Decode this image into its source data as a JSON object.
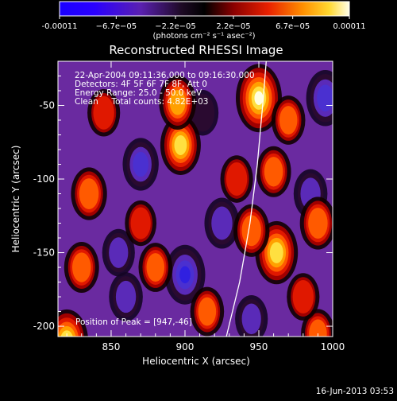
{
  "chart_data": {
    "type": "heatmap",
    "title": "Reconstructed RHESSI Image",
    "xlabel": "Heliocentric X (arcsec)",
    "ylabel": "Heliocentric Y (arcsec)",
    "xlim": [
      814,
      1000
    ],
    "ylim": [
      -207,
      -20
    ],
    "x_ticks": [
      850,
      900,
      950,
      1000
    ],
    "y_ticks": [
      -50,
      -100,
      -150,
      -200
    ],
    "colorbar": {
      "min": -0.00011,
      "max": 0.00011,
      "tick_values": [
        -0.00011,
        -6.7e-05,
        -2.2e-05,
        2.2e-05,
        6.7e-05,
        0.00011
      ],
      "tick_labels": [
        "-0.00011",
        "−6.7e−05",
        "−2.2e−05",
        "2.2e−05",
        "6.7e−05",
        "0.00011"
      ],
      "units_label": "(photons cm⁻² s⁻¹ asec⁻²)"
    },
    "annotations": [
      "22-Apr-2004 09:11:36.000 to 09:16:30.000",
      "Detectors: 4F 5F 6F 7F 8F, Att 0",
      "Energy Range: 25.0 - 50.0 keV",
      "Clean     Total counts: 4.82E+03"
    ],
    "peak_label": "Position of Peak = [947,-46]",
    "peak": [
      947,
      -46
    ],
    "limb_curve": [
      [
        928,
        -207
      ],
      [
        937,
        -170
      ],
      [
        944,
        -130
      ],
      [
        949,
        -90
      ],
      [
        953,
        -45
      ],
      [
        955,
        -20
      ]
    ],
    "bright_sources": [
      {
        "x": 950,
        "y": -45,
        "level": 1.0
      },
      {
        "x": 962,
        "y": -150,
        "level": 0.85
      },
      {
        "x": 897,
        "y": -77,
        "level": 0.75
      },
      {
        "x": 820,
        "y": -210,
        "level": 0.85
      },
      {
        "x": 895,
        "y": -48,
        "level": 0.6
      },
      {
        "x": 835,
        "y": -110,
        "level": 0.55
      },
      {
        "x": 990,
        "y": -130,
        "level": 0.55
      },
      {
        "x": 945,
        "y": -135,
        "level": 0.55
      },
      {
        "x": 830,
        "y": -160,
        "level": 0.5
      },
      {
        "x": 880,
        "y": -160,
        "level": 0.45
      },
      {
        "x": 970,
        "y": -60,
        "level": 0.45
      },
      {
        "x": 915,
        "y": -190,
        "level": 0.45
      },
      {
        "x": 990,
        "y": -205,
        "level": 0.45
      },
      {
        "x": 960,
        "y": -95,
        "level": 0.5
      },
      {
        "x": 870,
        "y": -130,
        "level": 0.35
      },
      {
        "x": 980,
        "y": -180,
        "level": 0.4
      },
      {
        "x": 935,
        "y": -100,
        "level": 0.4
      },
      {
        "x": 845,
        "y": -55,
        "level": 0.4
      }
    ],
    "dark_sources": [
      {
        "x": 900,
        "y": -165,
        "level": -0.75
      },
      {
        "x": 995,
        "y": -45,
        "level": -0.65
      },
      {
        "x": 870,
        "y": -90,
        "level": -0.55
      },
      {
        "x": 925,
        "y": -130,
        "level": -0.5
      },
      {
        "x": 860,
        "y": -180,
        "level": -0.45
      },
      {
        "x": 985,
        "y": -110,
        "level": -0.45
      },
      {
        "x": 855,
        "y": -150,
        "level": -0.4
      },
      {
        "x": 945,
        "y": -195,
        "level": -0.4
      },
      {
        "x": 912,
        "y": -55,
        "level": -0.35
      }
    ]
  },
  "footer": {
    "timestamp": "16-Jun-2013 03:53"
  }
}
